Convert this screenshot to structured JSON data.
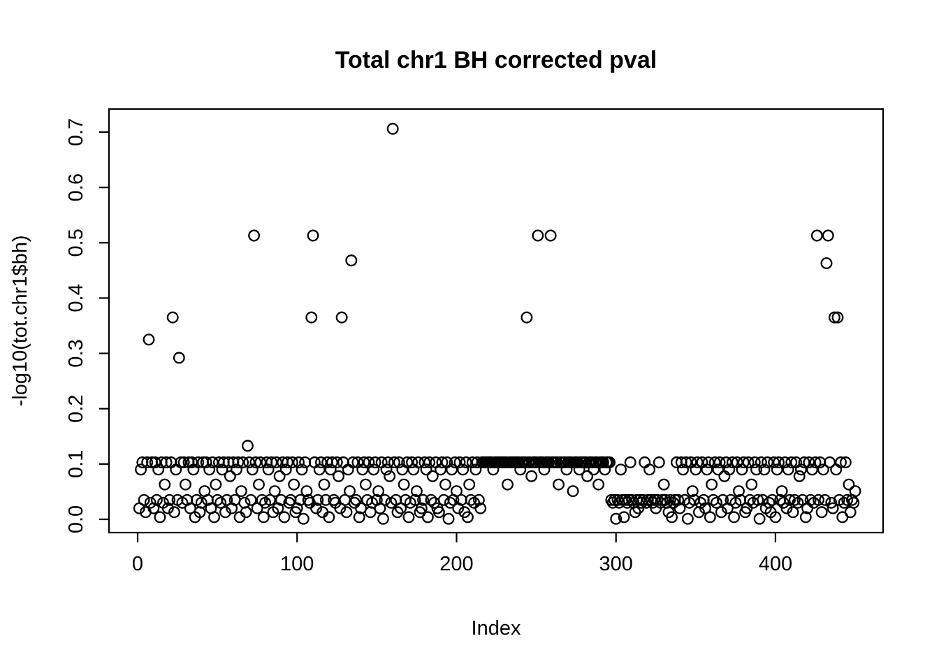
{
  "chart_data": {
    "type": "scatter",
    "title": "Total chr1 BH corrected pval",
    "xlabel": "Index",
    "ylabel": "-log10(tot.chr1$bh)",
    "legend": "none",
    "grid": false,
    "point_style": "open-circle",
    "point_color": "#000000",
    "background_color": "#ffffff",
    "x_ticks": [
      0,
      100,
      200,
      300,
      400
    ],
    "y_ticks": [
      0.0,
      0.1,
      0.2,
      0.3,
      0.4,
      0.5,
      0.6,
      0.7
    ],
    "xlim": [
      -17.96,
      467.5
    ],
    "ylim": [
      -0.024,
      0.7417
    ],
    "x_start_index": 1,
    "notable_outliers": [
      {
        "index": 7,
        "value": 0.325
      },
      {
        "index": 22,
        "value": 0.365
      },
      {
        "index": 26,
        "value": 0.292
      },
      {
        "index": 69,
        "value": 0.133
      },
      {
        "index": 73,
        "value": 0.513
      },
      {
        "index": 109,
        "value": 0.365
      },
      {
        "index": 110,
        "value": 0.513
      },
      {
        "index": 128,
        "value": 0.365
      },
      {
        "index": 134,
        "value": 0.468
      },
      {
        "index": 160,
        "value": 0.706
      },
      {
        "index": 244,
        "value": 0.365
      },
      {
        "index": 251,
        "value": 0.513
      },
      {
        "index": 259,
        "value": 0.513
      },
      {
        "index": 426,
        "value": 0.513
      },
      {
        "index": 432,
        "value": 0.463
      },
      {
        "index": 433,
        "value": 0.513
      },
      {
        "index": 437,
        "value": 0.365
      },
      {
        "index": 439,
        "value": 0.365
      }
    ],
    "values": [
      0.02,
      0.09,
      0.103,
      0.035,
      0.013,
      0.103,
      0.325,
      0.03,
      0.103,
      0.02,
      0.103,
      0.035,
      0.09,
      0.004,
      0.103,
      0.03,
      0.063,
      0.103,
      0.02,
      0.035,
      0.103,
      0.365,
      0.013,
      0.09,
      0.035,
      0.292,
      0.103,
      0.03,
      0.103,
      0.063,
      0.035,
      0.103,
      0.02,
      0.103,
      0.09,
      0.004,
      0.035,
      0.103,
      0.013,
      0.03,
      0.103,
      0.051,
      0.103,
      0.035,
      0.09,
      0.02,
      0.103,
      0.004,
      0.063,
      0.035,
      0.103,
      0.03,
      0.09,
      0.103,
      0.013,
      0.035,
      0.103,
      0.078,
      0.02,
      0.103,
      0.035,
      0.09,
      0.103,
      0.004,
      0.051,
      0.103,
      0.03,
      0.013,
      0.133,
      0.103,
      0.035,
      0.09,
      0.513,
      0.103,
      0.02,
      0.063,
      0.103,
      0.035,
      0.004,
      0.03,
      0.103,
      0.09,
      0.035,
      0.103,
      0.013,
      0.051,
      0.103,
      0.02,
      0.078,
      0.035,
      0.103,
      0.004,
      0.09,
      0.103,
      0.03,
      0.035,
      0.103,
      0.063,
      0.013,
      0.02,
      0.103,
      0.035,
      0.09,
      0.001,
      0.103,
      0.051,
      0.035,
      0.03,
      0.365,
      0.513,
      0.103,
      0.02,
      0.035,
      0.09,
      0.103,
      0.013,
      0.063,
      0.035,
      0.103,
      0.004,
      0.09,
      0.103,
      0.035,
      0.03,
      0.103,
      0.078,
      0.02,
      0.365,
      0.103,
      0.035,
      0.013,
      0.09,
      0.051,
      0.468,
      0.103,
      0.03,
      0.035,
      0.103,
      0.004,
      0.02,
      0.09,
      0.103,
      0.063,
      0.035,
      0.103,
      0.013,
      0.03,
      0.09,
      0.103,
      0.035,
      0.051,
      0.02,
      0.103,
      0.001,
      0.035,
      0.09,
      0.103,
      0.078,
      0.03,
      0.706,
      0.103,
      0.035,
      0.013,
      0.103,
      0.02,
      0.09,
      0.063,
      0.035,
      0.103,
      0.004,
      0.03,
      0.103,
      0.09,
      0.035,
      0.051,
      0.103,
      0.013,
      0.02,
      0.035,
      0.103,
      0.09,
      0.004,
      0.103,
      0.035,
      0.078,
      0.03,
      0.103,
      0.02,
      0.013,
      0.09,
      0.103,
      0.035,
      0.063,
      0.103,
      0.001,
      0.03,
      0.09,
      0.035,
      0.103,
      0.051,
      0.02,
      0.103,
      0.035,
      0.09,
      0.013,
      0.103,
      0.004,
      0.063,
      0.035,
      0.103,
      0.03,
      0.09,
      0.103,
      0.035,
      0.02,
      0.103,
      0.103,
      0.103,
      0.103,
      0.103,
      0.103,
      0.103,
      0.09,
      0.103,
      0.103,
      0.103,
      0.103,
      0.103,
      0.103,
      0.103,
      0.103,
      0.063,
      0.103,
      0.103,
      0.103,
      0.103,
      0.103,
      0.103,
      0.103,
      0.09,
      0.103,
      0.103,
      0.103,
      0.365,
      0.103,
      0.103,
      0.078,
      0.103,
      0.103,
      0.103,
      0.513,
      0.103,
      0.103,
      0.103,
      0.09,
      0.103,
      0.103,
      0.103,
      0.513,
      0.103,
      0.103,
      0.103,
      0.103,
      0.063,
      0.103,
      0.103,
      0.103,
      0.103,
      0.09,
      0.103,
      0.103,
      0.103,
      0.051,
      0.103,
      0.103,
      0.103,
      0.09,
      0.103,
      0.103,
      0.103,
      0.103,
      0.078,
      0.103,
      0.103,
      0.103,
      0.09,
      0.103,
      0.103,
      0.063,
      0.103,
      0.103,
      0.103,
      0.09,
      0.103,
      0.103,
      0.103,
      0.035,
      0.03,
      0.035,
      0.001,
      0.035,
      0.03,
      0.09,
      0.035,
      0.004,
      0.035,
      0.03,
      0.035,
      0.103,
      0.035,
      0.03,
      0.013,
      0.035,
      0.02,
      0.035,
      0.03,
      0.035,
      0.103,
      0.03,
      0.035,
      0.09,
      0.035,
      0.03,
      0.035,
      0.02,
      0.035,
      0.103,
      0.03,
      0.035,
      0.063,
      0.035,
      0.03,
      0.013,
      0.035,
      0.004,
      0.03,
      0.035,
      0.103,
      0.035,
      0.02,
      0.103,
      0.09,
      0.035,
      0.103,
      0.001,
      0.03,
      0.103,
      0.051,
      0.035,
      0.09,
      0.103,
      0.013,
      0.03,
      0.103,
      0.035,
      0.02,
      0.09,
      0.103,
      0.004,
      0.063,
      0.035,
      0.103,
      0.03,
      0.09,
      0.103,
      0.013,
      0.035,
      0.078,
      0.103,
      0.02,
      0.09,
      0.035,
      0.103,
      0.004,
      0.03,
      0.103,
      0.051,
      0.035,
      0.09,
      0.103,
      0.013,
      0.02,
      0.103,
      0.035,
      0.063,
      0.03,
      0.103,
      0.09,
      0.035,
      0.001,
      0.103,
      0.035,
      0.09,
      0.02,
      0.103,
      0.03,
      0.013,
      0.035,
      0.103,
      0.004,
      0.09,
      0.103,
      0.035,
      0.051,
      0.03,
      0.103,
      0.02,
      0.09,
      0.035,
      0.103,
      0.013,
      0.035,
      0.103,
      0.03,
      0.078,
      0.09,
      0.035,
      0.103,
      0.004,
      0.02,
      0.103,
      0.035,
      0.09,
      0.03,
      0.103,
      0.513,
      0.035,
      0.103,
      0.013,
      0.09,
      0.035,
      0.463,
      0.513,
      0.103,
      0.03,
      0.02,
      0.365,
      0.09,
      0.365,
      0.035,
      0.103,
      0.004,
      0.03,
      0.103,
      0.035,
      0.063,
      0.013,
      0.035,
      0.03,
      0.051
    ]
  }
}
